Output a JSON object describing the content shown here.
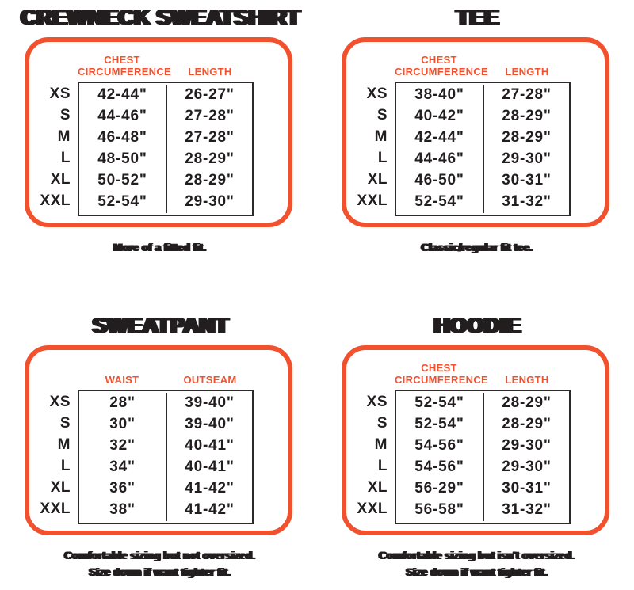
{
  "colors": {
    "accent": "#F2512E",
    "ink": "#221E1F"
  },
  "panels": [
    {
      "title": "CREWNECK SWEATSHIRT",
      "headers": {
        "col1": "CHEST CIRCUMFERENCE",
        "col2": "LENGTH"
      },
      "rows": [
        {
          "size": "XS",
          "c1": "42-44\"",
          "c2": "26-27\""
        },
        {
          "size": "S",
          "c1": "44-46\"",
          "c2": "27-28\""
        },
        {
          "size": "M",
          "c1": "46-48\"",
          "c2": "27-28\""
        },
        {
          "size": "L",
          "c1": "48-50\"",
          "c2": "28-29\""
        },
        {
          "size": "XL",
          "c1": "50-52\"",
          "c2": "28-29\""
        },
        {
          "size": "XXL",
          "c1": "52-54\"",
          "c2": "29-30\""
        }
      ],
      "caption": [
        "More of a fitted fit."
      ]
    },
    {
      "title": "TEE",
      "headers": {
        "col1": "CHEST CIRCUMFERENCE",
        "col2": "LENGTH"
      },
      "rows": [
        {
          "size": "XS",
          "c1": "38-40\"",
          "c2": "27-28\""
        },
        {
          "size": "S",
          "c1": "40-42\"",
          "c2": "28-29\""
        },
        {
          "size": "M",
          "c1": "42-44\"",
          "c2": "28-29\""
        },
        {
          "size": "L",
          "c1": "44-46\"",
          "c2": "29-30\""
        },
        {
          "size": "XL",
          "c1": "46-50\"",
          "c2": "30-31\""
        },
        {
          "size": "XXL",
          "c1": "52-54\"",
          "c2": "31-32\""
        }
      ],
      "caption": [
        "Classic/regular fit tee."
      ]
    },
    {
      "title": "SWEATPANT",
      "headers": {
        "col1": "WAIST",
        "col2": "OUTSEAM"
      },
      "rows": [
        {
          "size": "XS",
          "c1": "28\"",
          "c2": "39-40\""
        },
        {
          "size": "S",
          "c1": "30\"",
          "c2": "39-40\""
        },
        {
          "size": "M",
          "c1": "32\"",
          "c2": "40-41\""
        },
        {
          "size": "L",
          "c1": "34\"",
          "c2": "40-41\""
        },
        {
          "size": "XL",
          "c1": "36\"",
          "c2": "41-42\""
        },
        {
          "size": "XXL",
          "c1": "38\"",
          "c2": "41-42\""
        }
      ],
      "caption": [
        "Comfortable sizing but not oversized.",
        "Size down if want tighter fit."
      ]
    },
    {
      "title": "HOODIE",
      "headers": {
        "col1": "CHEST CIRCUMFERENCE",
        "col2": "LENGTH"
      },
      "rows": [
        {
          "size": "XS",
          "c1": "52-54\"",
          "c2": "28-29\""
        },
        {
          "size": "S",
          "c1": "52-54\"",
          "c2": "28-29\""
        },
        {
          "size": "M",
          "c1": "54-56\"",
          "c2": "29-30\""
        },
        {
          "size": "L",
          "c1": "54-56\"",
          "c2": "29-30\""
        },
        {
          "size": "XL",
          "c1": "56-29\"",
          "c2": "30-31\""
        },
        {
          "size": "XXL",
          "c1": "56-58\"",
          "c2": "31-32\""
        }
      ],
      "caption": [
        "Comfortable sizing but isn't oversized.",
        "Size down if want tighter fit."
      ]
    }
  ]
}
